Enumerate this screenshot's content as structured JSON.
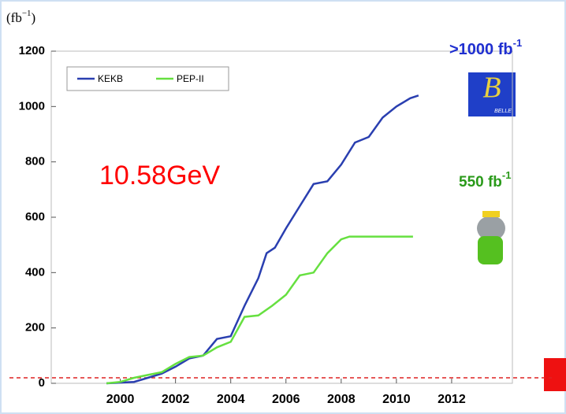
{
  "chart_data": {
    "type": "line",
    "y_label": "(fb",
    "y_label_sup": "−1",
    "y_label_close": ")",
    "annotations": [
      {
        "text": ">1000 fb",
        "sup": "-1",
        "color": "#1f2fd0"
      },
      {
        "text": "550 fb",
        "sup": "-1",
        "color": "#2a9a1a"
      },
      {
        "text": "10.58GeV",
        "color": "#ff0000"
      }
    ],
    "logo_text": "BELLE",
    "series": [
      {
        "name": "KEKB",
        "color": "#2a3fb0",
        "x": [
          1999.5,
          2000.5,
          2001,
          2001.5,
          2002,
          2002.5,
          2003,
          2003.5,
          2004,
          2004.5,
          2005,
          2005.3,
          2005.6,
          2006,
          2006.5,
          2007,
          2007.5,
          2008,
          2008.5,
          2009,
          2009.5,
          2010,
          2010.5,
          2010.8
        ],
        "values": [
          0,
          5,
          20,
          35,
          60,
          90,
          100,
          160,
          170,
          280,
          380,
          470,
          490,
          560,
          640,
          720,
          730,
          790,
          870,
          890,
          960,
          1000,
          1030,
          1040
        ]
      },
      {
        "name": "PEP-II",
        "color": "#66e040",
        "x": [
          1999.5,
          2000,
          2000.5,
          2001,
          2001.5,
          2002,
          2002.5,
          2003,
          2003.5,
          2004,
          2004.5,
          2005,
          2005.5,
          2006,
          2006.5,
          2007,
          2007.5,
          2008,
          2008.3,
          2010.6
        ],
        "values": [
          0,
          5,
          20,
          30,
          40,
          70,
          95,
          100,
          130,
          150,
          240,
          245,
          280,
          320,
          390,
          400,
          470,
          520,
          530,
          530
        ]
      }
    ],
    "reference_line": 20,
    "reference_color": "#dd2222",
    "xlim": [
      1997.5,
      2014.2
    ],
    "xticks": [
      2000,
      2002,
      2004,
      2006,
      2008,
      2010,
      2012
    ],
    "ylim": [
      0,
      1200
    ],
    "yticks": [
      0,
      200,
      400,
      600,
      800,
      1000,
      1200
    ],
    "legend": "upper left",
    "grid": false
  }
}
